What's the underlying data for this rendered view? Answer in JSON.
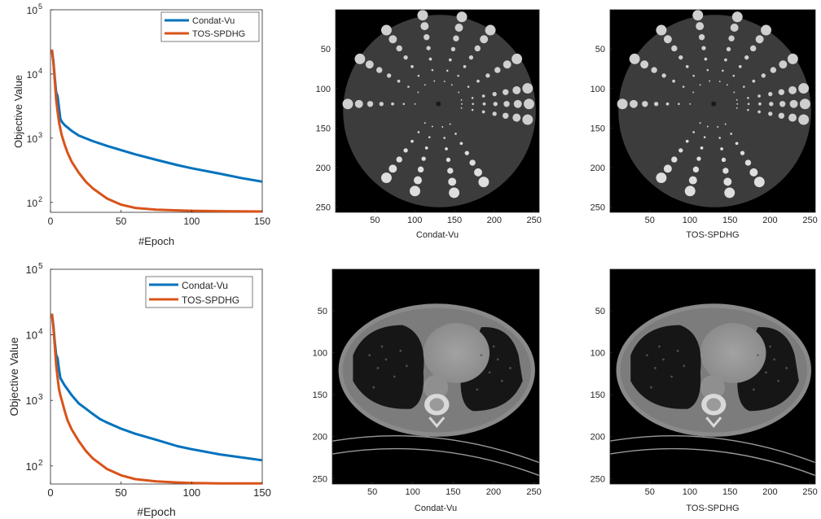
{
  "chart_data": [
    {
      "type": "line",
      "xlabel": "#Epoch",
      "ylabel": "Objective Value",
      "xlim": [
        0,
        150
      ],
      "ylim": [
        70,
        100000
      ],
      "yscale": "log",
      "xticks": [
        "0",
        "50",
        "100",
        "150"
      ],
      "yticks": [
        {
          "base": "10",
          "exp": "2",
          "v": 100
        },
        {
          "base": "10",
          "exp": "3",
          "v": 1000
        },
        {
          "base": "10",
          "exp": "4",
          "v": 10000
        },
        {
          "base": "10",
          "exp": "5",
          "v": 100000
        }
      ],
      "legend_position": "top-right",
      "grid": false,
      "series": [
        {
          "name": "Condat-Vu",
          "color": "#0072BD",
          "x": [
            1,
            2,
            3,
            4,
            5,
            6,
            7,
            8,
            10,
            15,
            20,
            30,
            40,
            50,
            60,
            75,
            90,
            100,
            120,
            135,
            150
          ],
          "y": [
            24000,
            16000,
            9000,
            5200,
            4500,
            3000,
            2000,
            1800,
            1600,
            1300,
            1100,
            900,
            760,
            650,
            560,
            460,
            380,
            340,
            280,
            240,
            210
          ]
        },
        {
          "name": "TOS-SPDHG",
          "color": "#D95319",
          "x": [
            1,
            2,
            3,
            4,
            5,
            6,
            7,
            8,
            10,
            12,
            15,
            20,
            25,
            30,
            40,
            50,
            60,
            75,
            90,
            100,
            120,
            150
          ],
          "y": [
            24000,
            15000,
            8000,
            4000,
            2600,
            1800,
            1400,
            1100,
            800,
            600,
            430,
            290,
            210,
            165,
            115,
            92,
            82,
            77,
            75,
            74,
            73,
            72
          ]
        }
      ]
    },
    {
      "type": "line",
      "xlabel": "#Epoch",
      "ylabel": "Objective Value",
      "xlim": [
        0,
        150
      ],
      "ylim": [
        53,
        100000
      ],
      "yscale": "log",
      "xticks": [
        "0",
        "50",
        "100",
        "150"
      ],
      "yticks": [
        {
          "base": "10",
          "exp": "2",
          "v": 100
        },
        {
          "base": "10",
          "exp": "3",
          "v": 1000
        },
        {
          "base": "10",
          "exp": "4",
          "v": 10000
        },
        {
          "base": "10",
          "exp": "5",
          "v": 100000
        }
      ],
      "legend_position": "top-right",
      "grid": false,
      "series": [
        {
          "name": "Condat-Vu",
          "color": "#0072BD",
          "x": [
            1,
            2,
            3,
            4,
            5,
            6,
            7,
            8,
            10,
            15,
            20,
            25,
            30,
            35,
            40,
            50,
            60,
            75,
            90,
            100,
            120,
            150
          ],
          "y": [
            21000,
            14000,
            8000,
            5000,
            4400,
            3000,
            2200,
            2000,
            1700,
            1200,
            900,
            750,
            620,
            520,
            460,
            370,
            310,
            250,
            200,
            180,
            150,
            122
          ]
        },
        {
          "name": "TOS-SPDHG",
          "color": "#D95319",
          "x": [
            1,
            2,
            3,
            4,
            5,
            6,
            7,
            8,
            10,
            12,
            15,
            20,
            25,
            30,
            40,
            50,
            60,
            75,
            90,
            100,
            120,
            150
          ],
          "y": [
            21000,
            13000,
            7000,
            3500,
            2200,
            1500,
            1200,
            1000,
            700,
            500,
            360,
            240,
            170,
            130,
            90,
            72,
            63,
            58,
            56,
            55,
            54,
            54
          ]
        }
      ]
    }
  ],
  "image_axes": [
    {
      "xlabel": "Condat-Vu",
      "content": "phantom"
    },
    {
      "xlabel": "TOS-SPDHG",
      "content": "phantom"
    },
    {
      "xlabel": "Condat-Vu",
      "content": "ct"
    },
    {
      "xlabel": "TOS-SPDHG",
      "content": "ct"
    }
  ],
  "image_ticks": [
    "50",
    "100",
    "150",
    "200",
    "250"
  ],
  "image_range": [
    0.5,
    256.5
  ]
}
